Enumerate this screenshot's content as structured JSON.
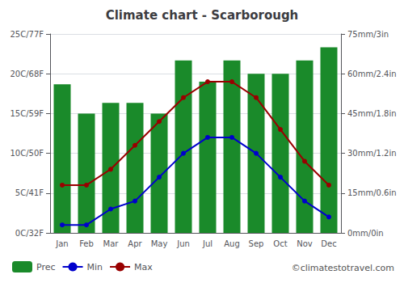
{
  "chart_data": {
    "type": "bar",
    "title": "Climate chart - Scarborough",
    "categories": [
      "Jan",
      "Feb",
      "Mar",
      "Apr",
      "May",
      "Jun",
      "Jul",
      "Aug",
      "Sep",
      "Oct",
      "Nov",
      "Dec"
    ],
    "series": [
      {
        "name": "Prec",
        "type": "bar",
        "axis": "y2",
        "color": "#1a8a2a",
        "values": [
          56,
          45,
          49,
          49,
          45,
          65,
          57,
          65,
          60,
          60,
          65,
          70
        ]
      },
      {
        "name": "Min",
        "type": "line",
        "marker": "circle",
        "color": "#0000cc",
        "values": [
          1,
          1,
          3,
          4,
          7,
          10,
          12,
          12,
          10,
          7,
          4,
          2
        ]
      },
      {
        "name": "Max",
        "type": "line",
        "marker": "circle",
        "color": "#990000",
        "values": [
          6,
          6,
          8,
          11,
          14,
          17,
          19,
          19,
          17,
          13,
          9,
          6
        ]
      }
    ],
    "ylim": [
      0,
      25
    ],
    "yticks": [
      {
        "value": 0,
        "label": "0C/32F"
      },
      {
        "value": 5,
        "label": "5C/41F"
      },
      {
        "value": 10,
        "label": "10C/50F"
      },
      {
        "value": 15,
        "label": "15C/59F"
      },
      {
        "value": 20,
        "label": "20C/68F"
      },
      {
        "value": 25,
        "label": "25C/77F"
      }
    ],
    "y2lim": [
      0,
      75
    ],
    "y2ticks": [
      {
        "value": 0,
        "label": "0mm/0in"
      },
      {
        "value": 15,
        "label": "15mm/0.6in"
      },
      {
        "value": 30,
        "label": "30mm/1.2in"
      },
      {
        "value": 45,
        "label": "45mm/1.8in"
      },
      {
        "value": 60,
        "label": "60mm/2.4in"
      },
      {
        "value": 75,
        "label": "75mm/3in"
      }
    ],
    "grid": true,
    "legend": "lower left",
    "annotations": [
      "©climatestotravel.com"
    ]
  }
}
